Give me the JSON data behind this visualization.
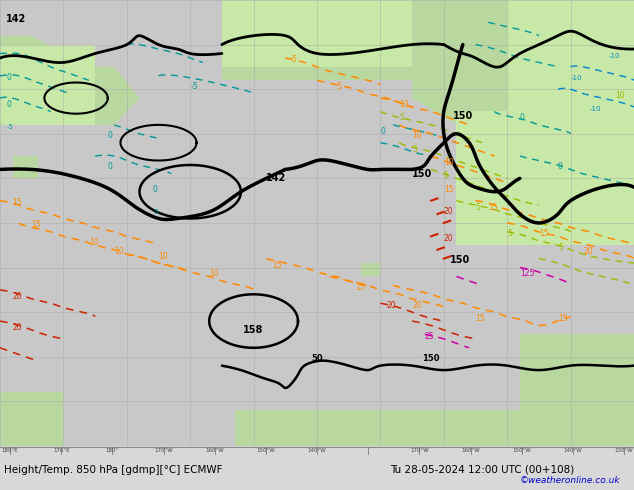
{
  "title_bottom": "Height/Temp. 850 hPa [gdmp][°C] ECMWF",
  "title_date": "Tu 28-05-2024 12:00 UTC (00+108)",
  "credit": "©weatheronline.co.uk",
  "bg_ocean": "#c8c8c8",
  "bg_land_green": "#b8d8a0",
  "bg_land_bright": "#c8e8a8",
  "grid_color": "#aaaaaa",
  "bottom_bar_color": "#d8d8d8",
  "credit_color": "#0000cc",
  "figsize": [
    6.34,
    4.9
  ],
  "dpi": 100,
  "lon_labels": [
    "180°E",
    "170°E",
    "180°",
    "170°W",
    "160°W",
    "150°W",
    "140°W",
    "",
    "170°W",
    "160°W",
    "150°W",
    "140°W",
    "130°W"
  ]
}
